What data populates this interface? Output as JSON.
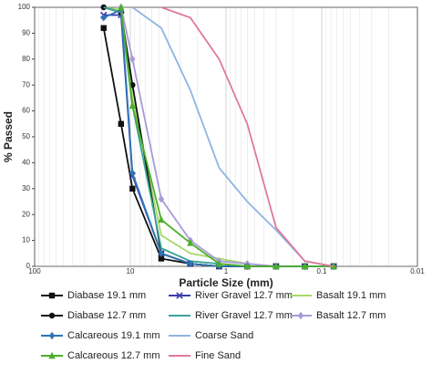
{
  "chart_data": {
    "type": "line",
    "x_label": "Particle Size (mm)",
    "y_label": "% Passed",
    "xscale": "log",
    "x_reversed": true,
    "grid": true,
    "xlim": [
      100,
      0.01
    ],
    "xticks": [
      100,
      10,
      1,
      0.1,
      0.01
    ],
    "ylim": [
      0,
      100
    ],
    "yticks": [
      0,
      10,
      20,
      30,
      40,
      50,
      60,
      70,
      80,
      90,
      100
    ],
    "series": [
      {
        "name": "Diabase 19.1 mm",
        "color": "#111111",
        "marker": "square",
        "x": [
          19,
          12.5,
          9.5,
          4.75,
          2.36,
          1.18,
          0.6,
          0.3,
          0.15,
          0.075
        ],
        "values": [
          92,
          55,
          30,
          3,
          1,
          0,
          0,
          0,
          0,
          0
        ]
      },
      {
        "name": "River Gravel 12.7 mm",
        "color": "#3b3ba8",
        "marker": "x",
        "x": [
          19,
          12.5,
          9.5,
          4.75,
          2.36,
          1.18,
          0.6,
          0.3,
          0.15,
          0.075
        ],
        "values": [
          97,
          97,
          35,
          5,
          1,
          0,
          0,
          0,
          0,
          0
        ]
      },
      {
        "name": "Basalt 19.1 mm",
        "color": "#a6d96a",
        "marker": "none",
        "x": [
          19,
          12.5,
          9.5,
          4.75,
          2.36,
          1.18,
          0.6,
          0.3,
          0.15,
          0.075
        ],
        "values": [
          100,
          99,
          65,
          12,
          5,
          3,
          1,
          0,
          0,
          0
        ]
      },
      {
        "name": "Diabase 12.7 mm",
        "color": "#111111",
        "marker": "circle",
        "x": [
          19,
          12.5,
          9.5,
          4.75,
          2.36,
          1.18,
          0.6,
          0.3,
          0.15,
          0.075
        ],
        "values": [
          100,
          98,
          70,
          5,
          1,
          0,
          0,
          0,
          0,
          0
        ]
      },
      {
        "name": "River Gravel 12.7 mm",
        "color": "#3aa39a",
        "marker": "none",
        "x": [
          19,
          12.5,
          9.5,
          4.75,
          2.36,
          1.18,
          0.6,
          0.3,
          0.15,
          0.075
        ],
        "values": [
          100,
          98,
          62,
          7,
          2,
          1,
          0,
          0,
          0,
          0
        ]
      },
      {
        "name": "Basalt 12.7 mm",
        "color": "#a99bd6",
        "marker": "diamond",
        "x": [
          12.5,
          9.5,
          4.75,
          2.36,
          1.18,
          0.6,
          0.3,
          0.15,
          0.075
        ],
        "values": [
          100,
          80,
          26,
          10,
          2,
          1,
          0,
          0,
          0
        ]
      },
      {
        "name": "Calcareous 19.1 mm",
        "color": "#2e75b6",
        "marker": "diamond",
        "x": [
          19,
          12.5,
          9.5,
          4.75,
          2.36,
          1.18,
          0.6,
          0.3,
          0.15,
          0.075
        ],
        "values": [
          96,
          99,
          36,
          5,
          1,
          0,
          0,
          0,
          0,
          0
        ]
      },
      {
        "name": "Coarse Sand",
        "color": "#8fb4e3",
        "marker": "none",
        "x": [
          9.5,
          4.75,
          2.36,
          1.18,
          0.6,
          0.3,
          0.15,
          0.075
        ],
        "values": [
          100,
          92,
          68,
          38,
          25,
          14,
          2,
          0
        ]
      },
      {
        "name": "Calcareous 12.7 mm",
        "color": "#4caf2a",
        "marker": "triangle",
        "x": [
          12.5,
          9.5,
          4.75,
          2.36,
          1.18,
          0.6,
          0.3,
          0.15,
          0.075
        ],
        "values": [
          100,
          62,
          18,
          9,
          1,
          0,
          0,
          0,
          0
        ]
      },
      {
        "name": "Fine Sand",
        "color": "#e07a9a",
        "marker": "none",
        "x": [
          4.75,
          2.36,
          1.18,
          0.6,
          0.3,
          0.15,
          0.075
        ],
        "values": [
          100,
          96,
          80,
          55,
          15,
          2,
          0
        ]
      }
    ]
  }
}
